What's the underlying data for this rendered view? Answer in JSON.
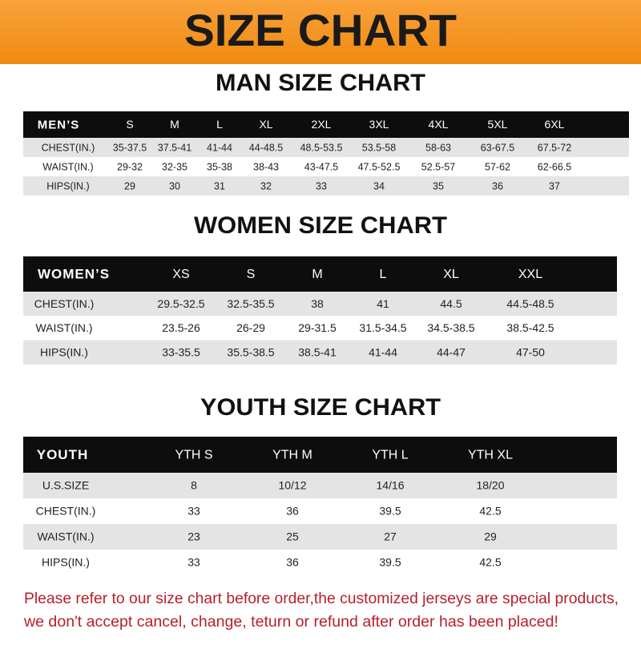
{
  "header": {
    "title": "SIZE CHART"
  },
  "tables": [
    {
      "title": "MAN SIZE CHART",
      "columns": [
        "MEN’S",
        "S",
        "M",
        "L",
        "XL",
        "2XL",
        "3XL",
        "4XL",
        "5XL",
        "6XL"
      ],
      "rows": [
        [
          "CHEST(IN.)",
          "35-37.5",
          "37.5-41",
          "41-44",
          "44-48.5",
          "48.5-53.5",
          "53.5-58",
          "58-63",
          "63-67.5",
          "67.5-72"
        ],
        [
          "WAIST(IN.)",
          "29-32",
          "32-35",
          "35-38",
          "38-43",
          "43-47.5",
          "47.5-52.5",
          "52.5-57",
          "57-62",
          "62-66.5"
        ],
        [
          "HIPS(IN.)",
          "29",
          "30",
          "31",
          "32",
          "33",
          "34",
          "35",
          "36",
          "37"
        ]
      ]
    },
    {
      "title": "WOMEN SIZE CHART",
      "columns": [
        "WOMEN’S",
        "XS",
        "S",
        "M",
        "L",
        "XL",
        "XXL"
      ],
      "rows": [
        [
          "CHEST(IN.)",
          "29.5-32.5",
          "32.5-35.5",
          "38",
          "41",
          "44.5",
          "44.5-48.5"
        ],
        [
          "WAIST(IN.)",
          "23.5-26",
          "26-29",
          "29-31.5",
          "31.5-34.5",
          "34.5-38.5",
          "38.5-42.5"
        ],
        [
          "HIPS(IN.)",
          "33-35.5",
          "35.5-38.5",
          "38.5-41",
          "41-44",
          "44-47",
          "47-50"
        ]
      ]
    },
    {
      "title": "YOUTH SIZE CHART",
      "columns": [
        "YOUTH",
        "YTH S",
        "YTH M",
        "YTH L",
        "YTH XL"
      ],
      "rows": [
        [
          "U.S.SIZE",
          "8",
          "10/12",
          "14/16",
          "18/20"
        ],
        [
          "CHEST(IN.)",
          "33",
          "36",
          "39.5",
          "42.5"
        ],
        [
          "WAIST(IN.)",
          "23",
          "25",
          "27",
          "29"
        ],
        [
          "HIPS(IN.)",
          "33",
          "36",
          "39.5",
          "42.5"
        ]
      ]
    }
  ],
  "notice": [
    "Please refer to our size chart before order,the customized jerseys are special products,",
    "we don't accept cancel, change, teturn or refund after order has been placed!"
  ]
}
